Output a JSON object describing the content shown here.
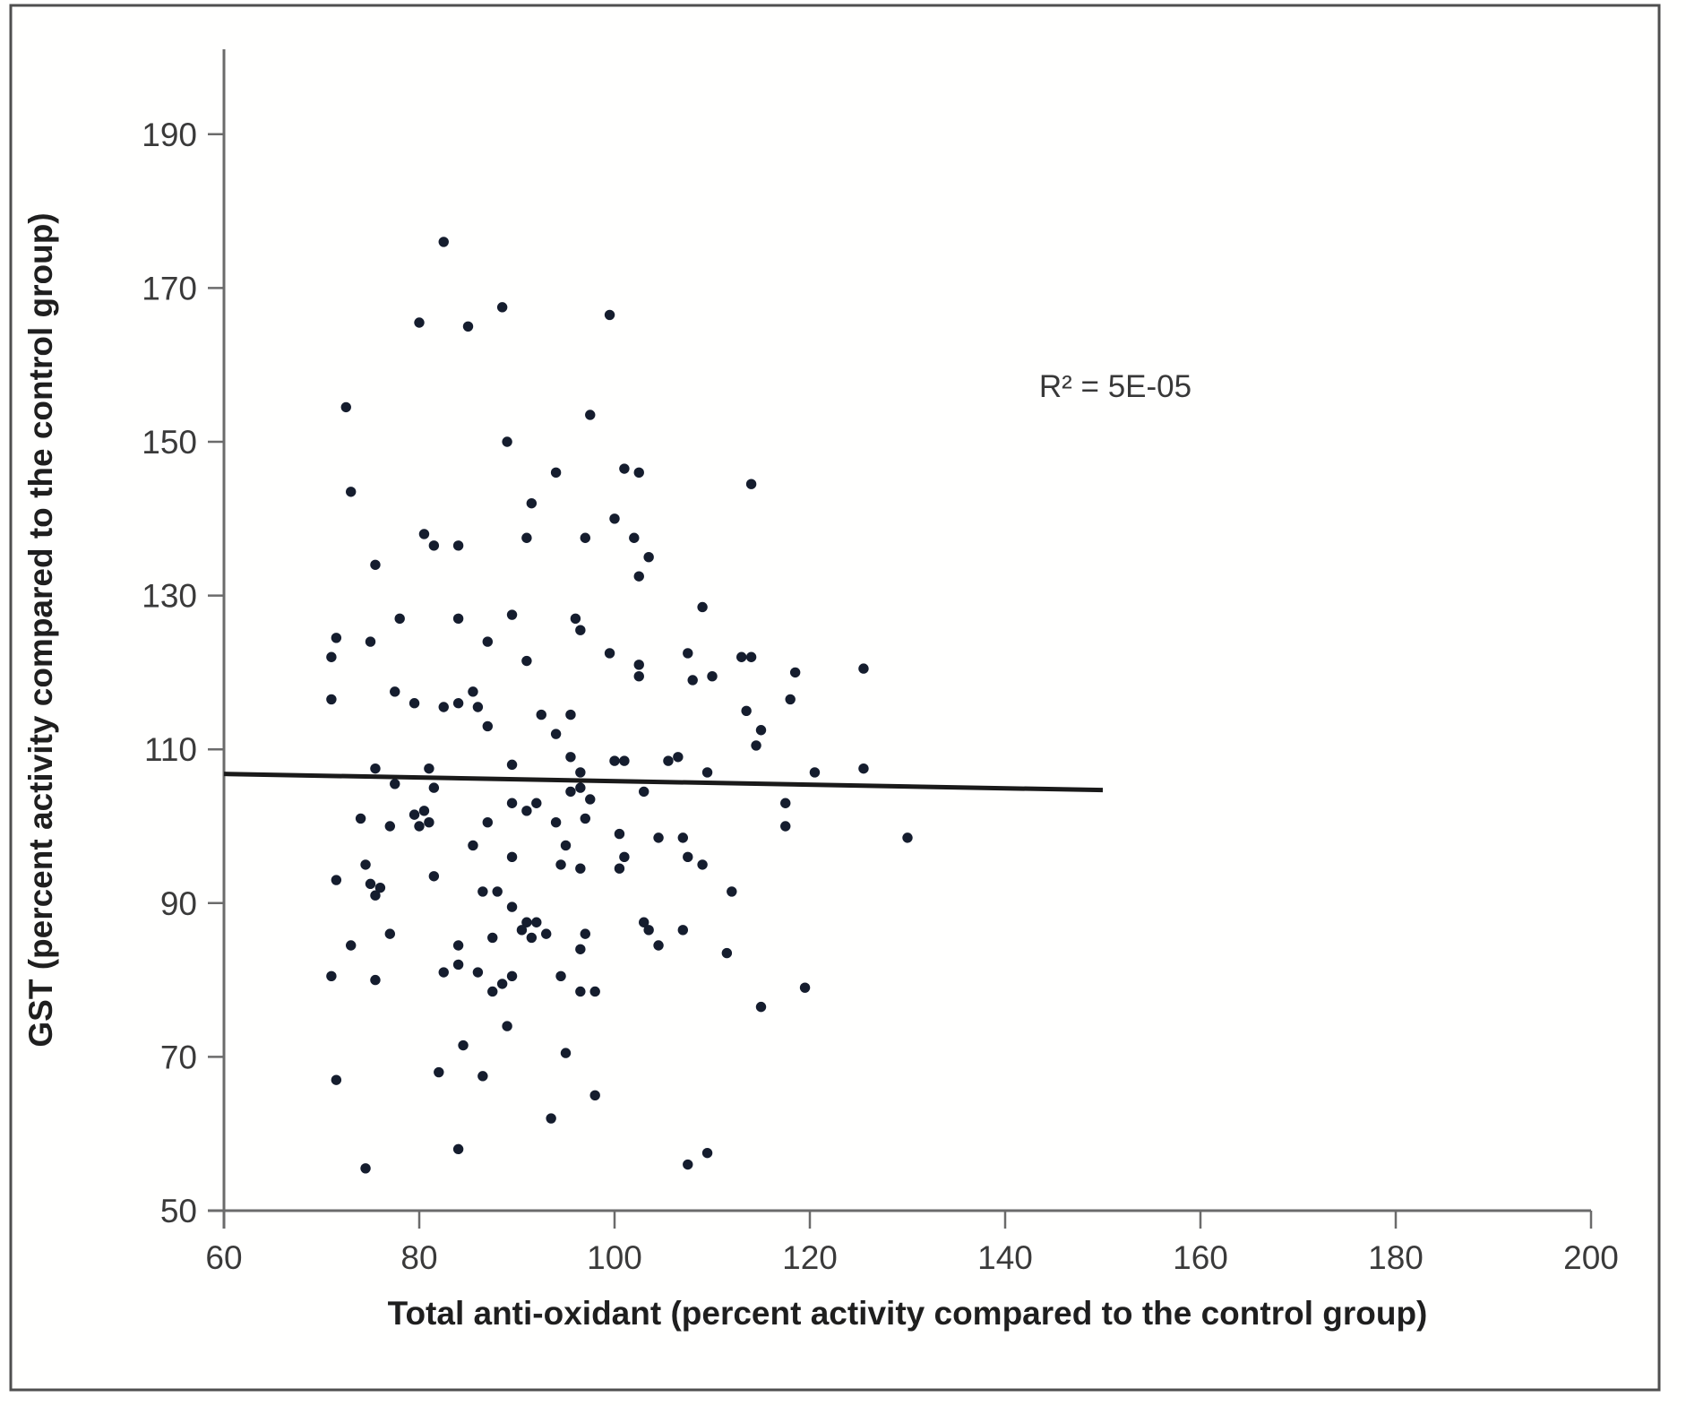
{
  "figure": {
    "border_color": "#4f4f4f",
    "background": "#fffffe"
  },
  "chart_data": {
    "type": "scatter",
    "title": "",
    "xlabel": "Total anti-oxidant (percent activity compared to the control group)",
    "ylabel": "GST (percent activity compared to the control group)",
    "x_ticks": [
      60,
      80,
      100,
      120,
      140,
      160,
      180,
      200
    ],
    "y_ticks": [
      50,
      70,
      90,
      110,
      130,
      150,
      170,
      190
    ],
    "xlim": [
      60,
      200
    ],
    "ylim": [
      50,
      201
    ],
    "grid": false,
    "legend": "none",
    "marker_color": "#151d2e",
    "axis_color": "#6b6b6b",
    "annotation": "R² = 5E-05",
    "annotation_pos": {
      "x": 151.3,
      "y": 157.3
    },
    "trendline": {
      "x1": 60,
      "y1": 106.8,
      "x2": 150,
      "y2": 104.7,
      "color": "#1a1a1a"
    },
    "points": [
      [
        82.5,
        176
      ],
      [
        88.5,
        167.5
      ],
      [
        99.5,
        166.5
      ],
      [
        80,
        165.5
      ],
      [
        85,
        165
      ],
      [
        72.5,
        154.5
      ],
      [
        97.5,
        153.5
      ],
      [
        89,
        150
      ],
      [
        94,
        146
      ],
      [
        101,
        146.5
      ],
      [
        102.5,
        146
      ],
      [
        114,
        144.5
      ],
      [
        73,
        143.5
      ],
      [
        91.5,
        142
      ],
      [
        100,
        140
      ],
      [
        80.5,
        138
      ],
      [
        81.5,
        136.5
      ],
      [
        84,
        136.5
      ],
      [
        91,
        137.5
      ],
      [
        97,
        137.5
      ],
      [
        102,
        137.5
      ],
      [
        103.5,
        135
      ],
      [
        75.5,
        134
      ],
      [
        102.5,
        132.5
      ],
      [
        109,
        128.5
      ],
      [
        78,
        127
      ],
      [
        84,
        127
      ],
      [
        89.5,
        127.5
      ],
      [
        96,
        127
      ],
      [
        96.5,
        125.5
      ],
      [
        75,
        124
      ],
      [
        71.5,
        124.5
      ],
      [
        87,
        124
      ],
      [
        71,
        122
      ],
      [
        91,
        121.5
      ],
      [
        99.5,
        122.5
      ],
      [
        107.5,
        122.5
      ],
      [
        113,
        122
      ],
      [
        114,
        122
      ],
      [
        118.5,
        120
      ],
      [
        125.5,
        120.5
      ],
      [
        102.5,
        121
      ],
      [
        102.5,
        119.5
      ],
      [
        108,
        119
      ],
      [
        110,
        119.5
      ],
      [
        77.5,
        117.5
      ],
      [
        85.5,
        117.5
      ],
      [
        79.5,
        116
      ],
      [
        84,
        116
      ],
      [
        86,
        115.5
      ],
      [
        71,
        116.5
      ],
      [
        82.5,
        115.5
      ],
      [
        118,
        116.5
      ],
      [
        113.5,
        115
      ],
      [
        115,
        112.5
      ],
      [
        114.5,
        110.5
      ],
      [
        92.5,
        114.5
      ],
      [
        95.5,
        114.5
      ],
      [
        94,
        112
      ],
      [
        87,
        113
      ],
      [
        89.5,
        108
      ],
      [
        95.5,
        109
      ],
      [
        96.5,
        107
      ],
      [
        100,
        108.5
      ],
      [
        101,
        108.5
      ],
      [
        105.5,
        108.5
      ],
      [
        106.5,
        109
      ],
      [
        109.5,
        107
      ],
      [
        75.5,
        107.5
      ],
      [
        81,
        107.5
      ],
      [
        77.5,
        105.5
      ],
      [
        81.5,
        105
      ],
      [
        120.5,
        107
      ],
      [
        125.5,
        107.5
      ],
      [
        80.5,
        102
      ],
      [
        79.5,
        101.5
      ],
      [
        80,
        100
      ],
      [
        81,
        100.5
      ],
      [
        77,
        100
      ],
      [
        74,
        101
      ],
      [
        89.5,
        103
      ],
      [
        87,
        100.5
      ],
      [
        91,
        102
      ],
      [
        92,
        103
      ],
      [
        95.5,
        104.5
      ],
      [
        96.5,
        105
      ],
      [
        97.5,
        103.5
      ],
      [
        97,
        101
      ],
      [
        103,
        104.5
      ],
      [
        94,
        100.5
      ],
      [
        117.5,
        103
      ],
      [
        117.5,
        100
      ],
      [
        85.5,
        97.5
      ],
      [
        100.5,
        99
      ],
      [
        104.5,
        98.5
      ],
      [
        107,
        98.5
      ],
      [
        130,
        98.5
      ],
      [
        89.5,
        96
      ],
      [
        95,
        97.5
      ],
      [
        94.5,
        95
      ],
      [
        101,
        96
      ],
      [
        100.5,
        94.5
      ],
      [
        96.5,
        94.5
      ],
      [
        107.5,
        96
      ],
      [
        109,
        95
      ],
      [
        74.5,
        95
      ],
      [
        71.5,
        93
      ],
      [
        75,
        92.5
      ],
      [
        76,
        92
      ],
      [
        75.5,
        91
      ],
      [
        81.5,
        93.5
      ],
      [
        86.5,
        91.5
      ],
      [
        88,
        91.5
      ],
      [
        89.5,
        89.5
      ],
      [
        112,
        91.5
      ],
      [
        91,
        87.5
      ],
      [
        92,
        87.5
      ],
      [
        90.5,
        86.5
      ],
      [
        91.5,
        85.5
      ],
      [
        93,
        86
      ],
      [
        97,
        86
      ],
      [
        103,
        87.5
      ],
      [
        103.5,
        86.5
      ],
      [
        107,
        86.5
      ],
      [
        77,
        86
      ],
      [
        87.5,
        85.5
      ],
      [
        84,
        84.5
      ],
      [
        73,
        84.5
      ],
      [
        104.5,
        84.5
      ],
      [
        111.5,
        83.5
      ],
      [
        96.5,
        84
      ],
      [
        94.5,
        80.5
      ],
      [
        96.5,
        78.5
      ],
      [
        98,
        78.5
      ],
      [
        89.5,
        80.5
      ],
      [
        71,
        80.5
      ],
      [
        75.5,
        80
      ],
      [
        82.5,
        81
      ],
      [
        84,
        82
      ],
      [
        86,
        81
      ],
      [
        88.5,
        79.5
      ],
      [
        87.5,
        78.5
      ],
      [
        89,
        74
      ],
      [
        119.5,
        79
      ],
      [
        115,
        76.5
      ],
      [
        84.5,
        71.5
      ],
      [
        82,
        68
      ],
      [
        86.5,
        67.5
      ],
      [
        71.5,
        67
      ],
      [
        95,
        70.5
      ],
      [
        98,
        65
      ],
      [
        93.5,
        62
      ],
      [
        84,
        58
      ],
      [
        74.5,
        55.5
      ],
      [
        107.5,
        56
      ],
      [
        109.5,
        57.5
      ]
    ]
  }
}
